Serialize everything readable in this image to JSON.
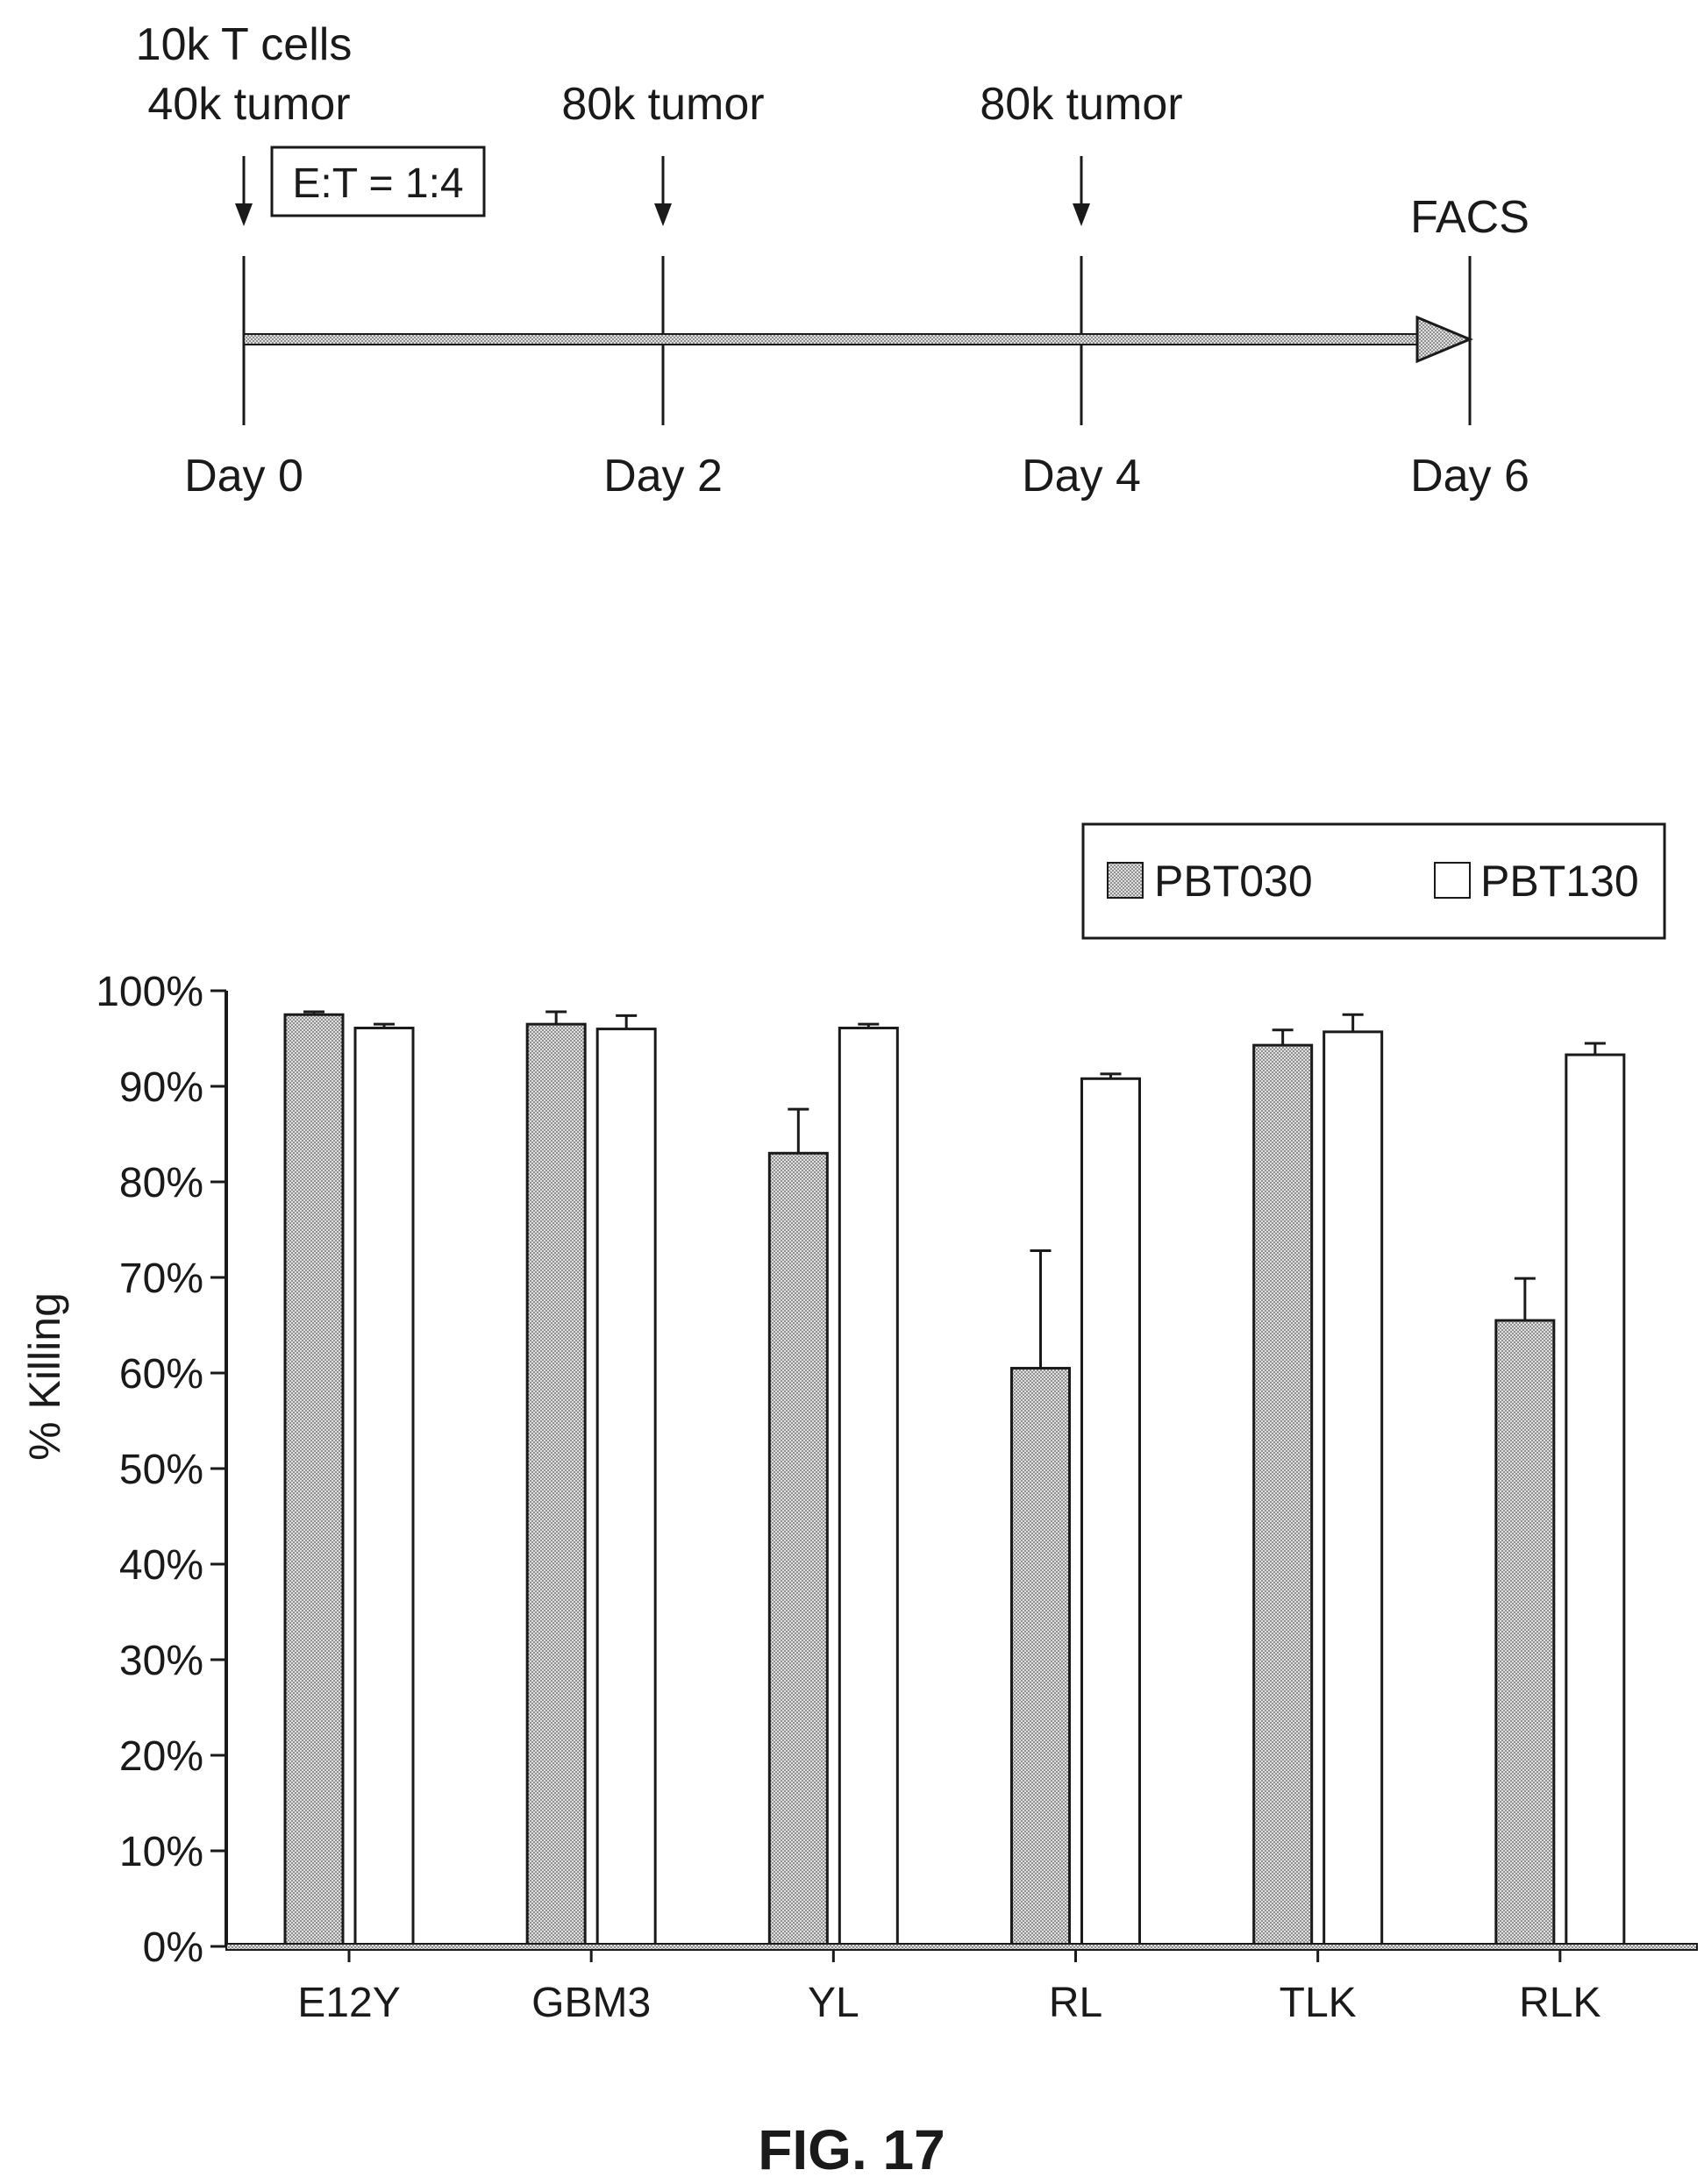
{
  "timeline": {
    "day0_top": "10k T cells",
    "day0_bottom": "40k tumor",
    "ratio_box": "E:T = 1:4",
    "day2_label": "80k tumor",
    "day4_label": "80k tumor",
    "day6_label": "FACS",
    "day_labels": [
      "Day 0",
      "Day 2",
      "Day 4",
      "Day 6"
    ]
  },
  "chart_data": {
    "type": "bar",
    "title": "",
    "xlabel": "",
    "ylabel": "% Killing",
    "categories": [
      "E12Y",
      "GBM3",
      "YL",
      "RL",
      "TLK",
      "RLK"
    ],
    "ylim": [
      0,
      100
    ],
    "yticks": [
      "0%",
      "10%",
      "20%",
      "30%",
      "40%",
      "50%",
      "60%",
      "70%",
      "80%",
      "90%",
      "100%"
    ],
    "series": [
      {
        "name": "PBT030",
        "values": [
          97.5,
          96.5,
          83.0,
          60.5,
          94.3,
          65.5
        ],
        "errors": [
          0.3,
          1.3,
          4.6,
          12.3,
          1.6,
          4.4
        ],
        "fill": "#c8c8c8"
      },
      {
        "name": "PBT130",
        "values": [
          96.1,
          96.0,
          96.1,
          90.8,
          95.7,
          93.3
        ],
        "errors": [
          0.4,
          1.4,
          0.4,
          0.5,
          1.8,
          1.2
        ],
        "fill": "#ffffff"
      }
    ],
    "legend_position": "top-right",
    "grid": false
  },
  "caption": "FIG. 17"
}
